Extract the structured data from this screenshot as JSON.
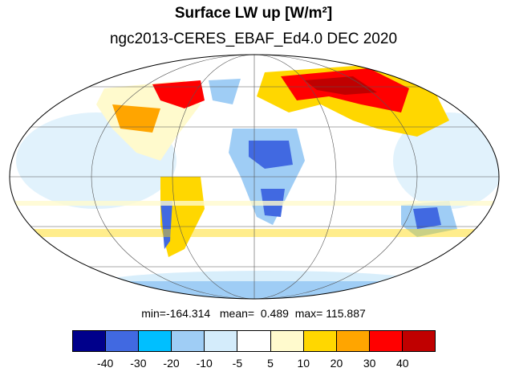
{
  "title": "Surface LW up [W/m²]",
  "subtitle": "ngc2013-CERES_EBAF_Ed4.0  DEC 2020",
  "stats": {
    "min_label": "min=",
    "min": "-164.314",
    "mean_label": "mean=",
    "mean": "0.489",
    "max_label": "max=",
    "max": "115.887"
  },
  "colorbar": {
    "colors": [
      "#00008b",
      "#4169e1",
      "#00bfff",
      "#9fcdf5",
      "#d4ecfb",
      "#ffffff",
      "#fffacd",
      "#ffd700",
      "#ffa500",
      "#ff0000",
      "#c00000"
    ],
    "labels": [
      "-40",
      "-30",
      "-20",
      "-10",
      "-5",
      "5",
      "10",
      "20",
      "30",
      "40"
    ]
  }
}
